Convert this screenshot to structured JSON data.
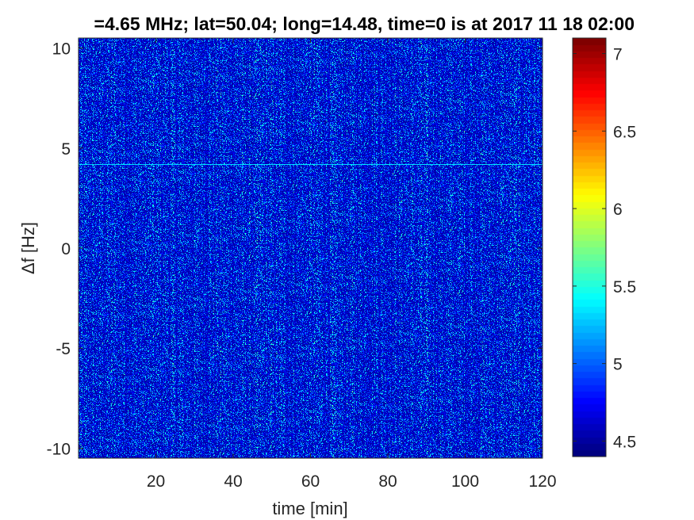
{
  "chart_data": {
    "type": "heatmap",
    "title": "=4.65 MHz;  lat=50.04; long=14.48, time=0 is at 2017 11 18 02:00",
    "xlabel": "time [min]",
    "ylabel": "Δf [Hz]",
    "xlim": [
      0,
      120
    ],
    "ylim": [
      -10.5,
      10.5
    ],
    "xticks": [
      20,
      40,
      60,
      80,
      100,
      120
    ],
    "xtick_labels": [
      "20",
      "40",
      "60",
      "80",
      "100",
      "120"
    ],
    "yticks": [
      -10,
      -5,
      0,
      5,
      10
    ],
    "ytick_labels": [
      "-10",
      "-5",
      "0",
      "5",
      "10"
    ],
    "colormap": "jet",
    "clim": [
      4.4,
      7.1
    ],
    "colorbar_ticks": [
      4.5,
      5,
      5.5,
      6,
      6.5,
      7
    ],
    "colorbar_tick_labels": [
      "4.5",
      "5",
      "5.5",
      "6",
      "6.5",
      "7"
    ],
    "background_level": 4.5,
    "noise_peak_level": 5.3,
    "carrier_line": {
      "df_hz": 4.2,
      "level": 5.25,
      "from_min": 0,
      "to_min": 120
    }
  }
}
